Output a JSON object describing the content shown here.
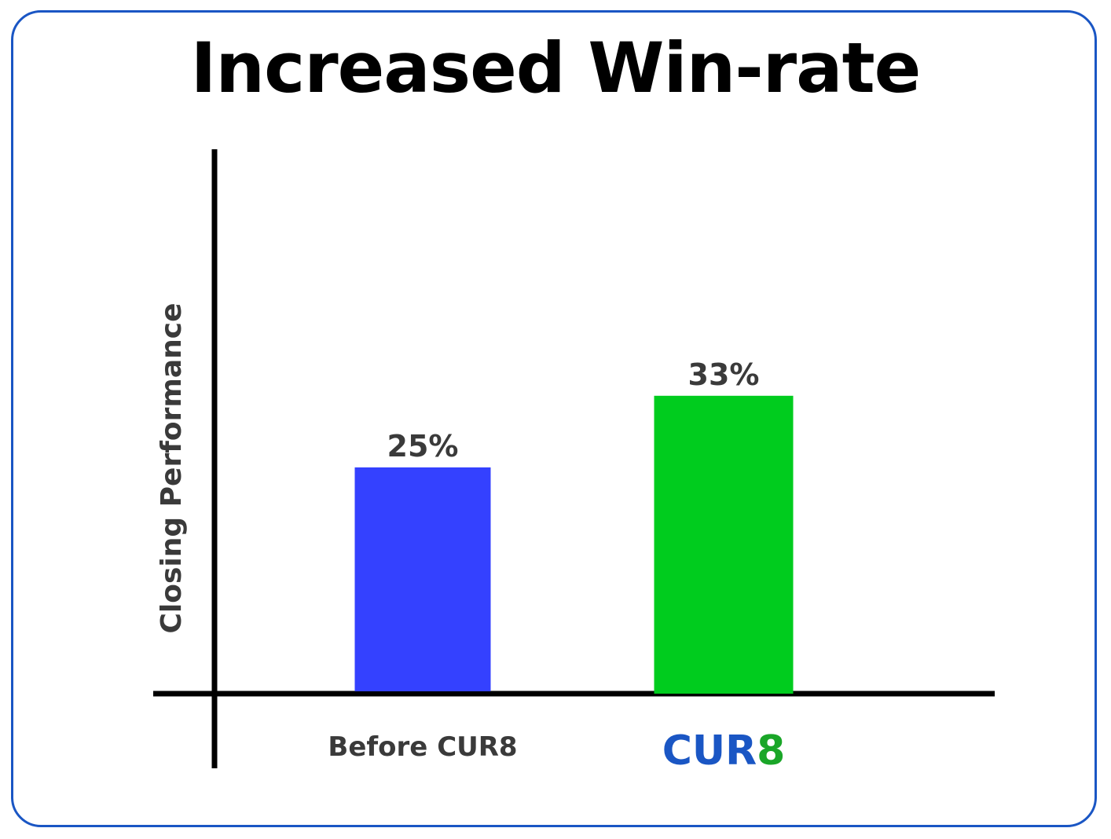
{
  "chart_data": {
    "type": "bar",
    "title": "Increased Win-rate",
    "ylabel": "Closing Performance",
    "xlabel": "",
    "categories": [
      "Before CUR8",
      "CUR8"
    ],
    "values": [
      25,
      33
    ],
    "value_labels": [
      "25%",
      "33%"
    ],
    "bar_colors": [
      "#3441ff",
      "#00cc1e"
    ],
    "ylim": [
      0,
      50
    ],
    "grid": false,
    "legend": "none"
  },
  "logo": {
    "part1": "CUR",
    "part2": "8",
    "color1": "#1a56c4",
    "color2": "#1aa628"
  },
  "colors": {
    "border": "#1a56c4",
    "axis": "#000000",
    "text": "#3a3a3a"
  }
}
